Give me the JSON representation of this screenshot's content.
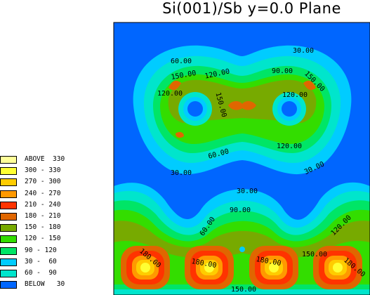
{
  "chart_data": {
    "type": "heatmap",
    "title": "Si(001)/Sb y=0.0 Plane",
    "colorbar": {
      "placement": "left",
      "levels": [
        {
          "label": "ABOVE  330",
          "color": "#ffff99"
        },
        {
          "label": "300 - 330",
          "color": "#ffff33"
        },
        {
          "label": "270 - 300",
          "color": "#ffcc00"
        },
        {
          "label": "240 - 270",
          "color": "#ff9900"
        },
        {
          "label": "210 - 240",
          "color": "#ff3300"
        },
        {
          "label": "180 - 210",
          "color": "#e06600"
        },
        {
          "label": "150 - 180",
          "color": "#77aa00"
        },
        {
          "label": "120 - 150",
          "color": "#33dd00"
        },
        {
          "label": "90 - 120",
          "color": "#00e566"
        },
        {
          "label": "30 -  60",
          "color": "#00ccff"
        },
        {
          "label": "60 -  90",
          "color": "#00e5cc"
        },
        {
          "label": "BELOW   30",
          "color": "#0066ff"
        }
      ]
    },
    "contour_labels": [
      "60.00",
      "30.00",
      "150.00",
      "120.00",
      "90.00",
      "150.00",
      "120.00",
      "150.00",
      "120.00",
      "60.00",
      "120.00",
      "30.00",
      "30.00",
      "30.00",
      "90.00",
      "60.00",
      "120.00",
      "180.00",
      "180.00",
      "180.00",
      "150.00",
      "180.00",
      "150.00"
    ]
  }
}
